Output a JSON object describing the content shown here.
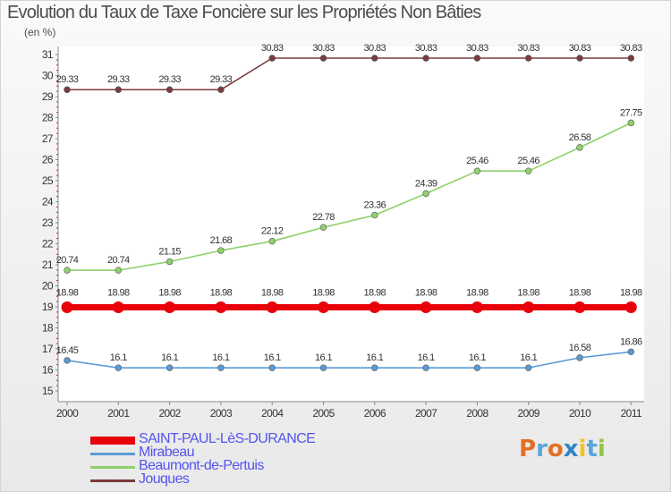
{
  "header": {
    "title": "Evolution du Taux de Taxe Foncière sur les Propriétés Non Bâties",
    "subtitle": "(en %)"
  },
  "logo": {
    "text": "Proxiti",
    "letter_colors": [
      "#e36f25",
      "#5aa6d9",
      "#e36f25",
      "#2f86c6",
      "#f3c41d",
      "#5aa6d9",
      "#90c73e"
    ]
  },
  "chart_data": {
    "type": "line",
    "title": "Evolution du Taux de Taxe Foncière sur les Propriétés Non Bâties",
    "subtitle": "(en %)",
    "x": [
      "2000",
      "2001",
      "2002",
      "2003",
      "2004",
      "2005",
      "2006",
      "2007",
      "2008",
      "2009",
      "2010",
      "2011"
    ],
    "ylim": [
      15,
      31
    ],
    "yticks": [
      "15",
      "16",
      "17",
      "18",
      "19",
      "20",
      "21",
      "22",
      "23",
      "24",
      "25",
      "26",
      "27",
      "28",
      "29",
      "30",
      "31"
    ],
    "grid": false,
    "legend_placement": "bottom-left",
    "series": [
      {
        "name": "SAINT-PAUL-LèS-DURANCE",
        "color": "#e8000b",
        "emphasis": true,
        "values": [
          18.98,
          18.98,
          18.98,
          18.98,
          18.98,
          18.98,
          18.98,
          18.98,
          18.98,
          18.98,
          18.98,
          18.98
        ],
        "labels": [
          "18.98",
          "18.98",
          "18.98",
          "18.98",
          "18.98",
          "18.98",
          "18.98",
          "18.98",
          "18.98",
          "18.98",
          "18.98",
          "18.98"
        ]
      },
      {
        "name": "Mirabeau",
        "color": "#5b9bd5",
        "emphasis": false,
        "values": [
          16.45,
          16.1,
          16.1,
          16.1,
          16.1,
          16.1,
          16.1,
          16.1,
          16.1,
          16.1,
          16.58,
          16.86
        ],
        "labels": [
          "16.45",
          "16.1",
          "16.1",
          "16.1",
          "16.1",
          "16.1",
          "16.1",
          "16.1",
          "16.1",
          "16.1",
          "16.58",
          "16.86"
        ]
      },
      {
        "name": "Beaumont-de-Pertuis",
        "color": "#8fd16a",
        "emphasis": false,
        "values": [
          20.74,
          20.74,
          21.15,
          21.68,
          22.12,
          22.78,
          23.36,
          24.39,
          25.46,
          25.46,
          26.58,
          27.75
        ],
        "labels": [
          "20.74",
          "20.74",
          "21.15",
          "21.68",
          "22.12",
          "22.78",
          "23.36",
          "24.39",
          "25.46",
          "25.46",
          "26.58",
          "27.75"
        ]
      },
      {
        "name": "Jouques",
        "color": "#7b3b3b",
        "emphasis": false,
        "values": [
          29.33,
          29.33,
          29.33,
          29.33,
          30.83,
          30.83,
          30.83,
          30.83,
          30.83,
          30.83,
          30.83,
          30.83
        ],
        "labels": [
          "29.33",
          "29.33",
          "29.33",
          "29.33",
          "30.83",
          "30.83",
          "30.83",
          "30.83",
          "30.83",
          "30.83",
          "30.83",
          "30.83"
        ]
      }
    ]
  },
  "legend": {
    "items": [
      {
        "label": "SAINT-PAUL-LèS-DURANCE",
        "color": "#e8000b",
        "text_color": "#5555ee"
      },
      {
        "label": "Mirabeau",
        "color": "#5b9bd5",
        "text_color": "#5555ee"
      },
      {
        "label": "Beaumont-de-Pertuis",
        "color": "#8fd16a",
        "text_color": "#5555ee"
      },
      {
        "label": "Jouques",
        "color": "#7b3b3b",
        "text_color": "#5555ee"
      }
    ]
  }
}
